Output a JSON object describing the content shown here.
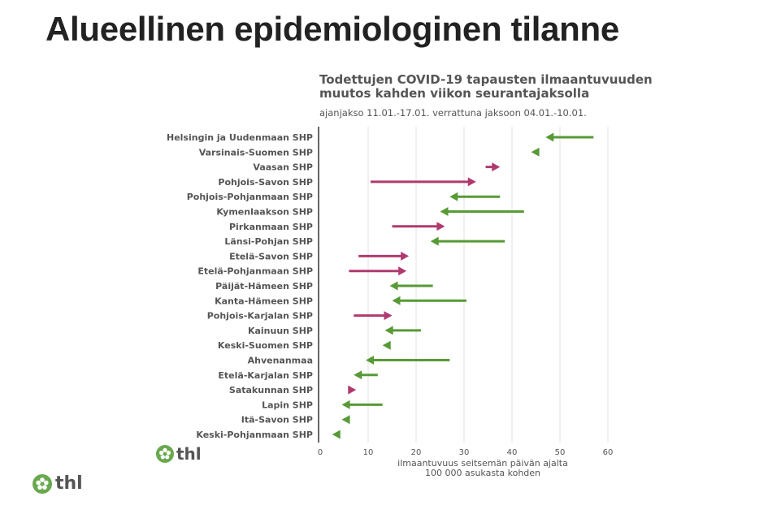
{
  "slide": {
    "title": "Alueellinen epidemiologinen tilanne"
  },
  "logos": {
    "text": "thl",
    "color": "#6aa84f"
  },
  "colors": {
    "decrease": "#579a36",
    "increase": "#b03a6e",
    "grid": "#e2e2e2",
    "axis": "#666666"
  },
  "chart_data": {
    "type": "arrow",
    "title": "Todettujen COVID-19 tapausten ilmaantuvuuden muutos kahden viikon seurantajaksolla",
    "subtitle": "ajanjakso 11.01.-17.01. verrattuna jaksoon 04.01.-10.01.",
    "xlabel": "ilmaantuvuus seitsemän päivän ajalta 100 000 asukasta kohden",
    "xlabel_lines": [
      "ilmaantuvuus seitsemän päivän ajalta",
      "100 000 asukasta kohden"
    ],
    "xlim": [
      0,
      60
    ],
    "xticks": [
      0,
      10,
      20,
      30,
      40,
      50,
      60
    ],
    "grid": true,
    "categories": [
      "Helsingin ja Uudenmaan SHP",
      "Varsinais-Suomen SHP",
      "Vaasan SHP",
      "Pohjois-Savon SHP",
      "Pohjois-Pohjanmaan SHP",
      "Kymenlaakson SHP",
      "Pirkanmaan SHP",
      "Länsi-Pohjan SHP",
      "Etelä-Savon SHP",
      "Etelä-Pohjanmaan SHP",
      "Päijät-Hämeen SHP",
      "Kanta-Hämeen SHP",
      "Pohjois-Karjalan SHP",
      "Kainuun SHP",
      "Keski-Suomen SHP",
      "Ahvenanmaa",
      "Etelä-Karjalan SHP",
      "Satakunnan SHP",
      "Lapin SHP",
      "Itä-Savon SHP",
      "Keski-Pohjanmaan SHP"
    ],
    "series": [
      {
        "values_start": [
          57,
          45,
          34.5,
          10.5,
          37.5,
          42.5,
          15,
          38.5,
          8,
          6,
          23.5,
          30.5,
          7,
          21,
          14.5,
          27,
          12,
          6,
          13,
          6,
          4
        ],
        "values_end": [
          47,
          44,
          37.5,
          32.5,
          27,
          25,
          26,
          23,
          18.5,
          18,
          14.5,
          15,
          15,
          13.5,
          13,
          9.5,
          7,
          7.5,
          4.5,
          4.5,
          2.5
        ]
      }
    ]
  }
}
